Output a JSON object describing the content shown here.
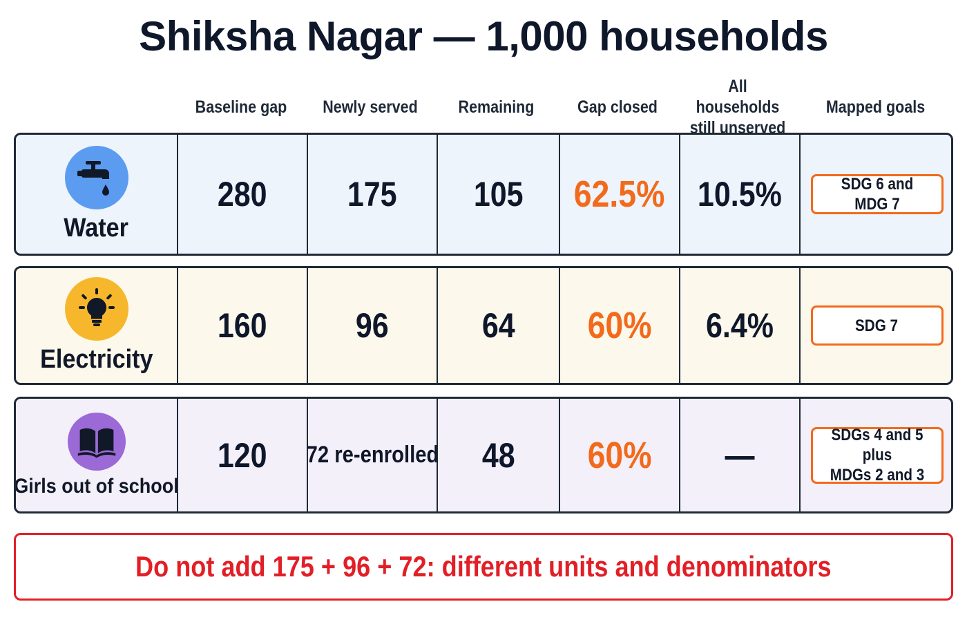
{
  "title": "Shiksha Nagar — 1,000 households",
  "columns": {
    "baseline": "Baseline gap",
    "served": "Newly served",
    "remaining": "Remaining",
    "closed": "Gap closed",
    "unserved": "All households\nstill unserved",
    "goals": "Mapped goals"
  },
  "rows": {
    "water": {
      "label": "Water",
      "icon": "water-tap-icon",
      "icon_color": "#5b9cf0",
      "baseline": "280",
      "served": "175",
      "remaining": "105",
      "closed": "62.5%",
      "unserved": "10.5%",
      "goals": "SDG 6 and MDG 7"
    },
    "electricity": {
      "label": "Electricity",
      "icon": "light-bulb-icon",
      "icon_color": "#f7b72c",
      "baseline": "160",
      "served": "96",
      "remaining": "64",
      "closed": "60%",
      "unserved": "6.4%",
      "goals": "SDG 7"
    },
    "girls": {
      "label": "Girls out of school",
      "icon": "open-book-icon",
      "icon_color": "#9b6ad6",
      "baseline": "120",
      "served": "72 re-enrolled",
      "remaining": "48",
      "closed": "60%",
      "unserved": "—",
      "goals": "SDGs 4 and 5 plus\nMDGs 2 and 3"
    }
  },
  "warning": "Do not add 175 + 96 + 72: different units and denominators",
  "colors": {
    "accent_orange": "#f26a1b",
    "warning_red": "#e21f26",
    "water_bg": "#edf4fc",
    "electricity_bg": "#fcf8ec",
    "girls_bg": "#f3f0fa"
  }
}
